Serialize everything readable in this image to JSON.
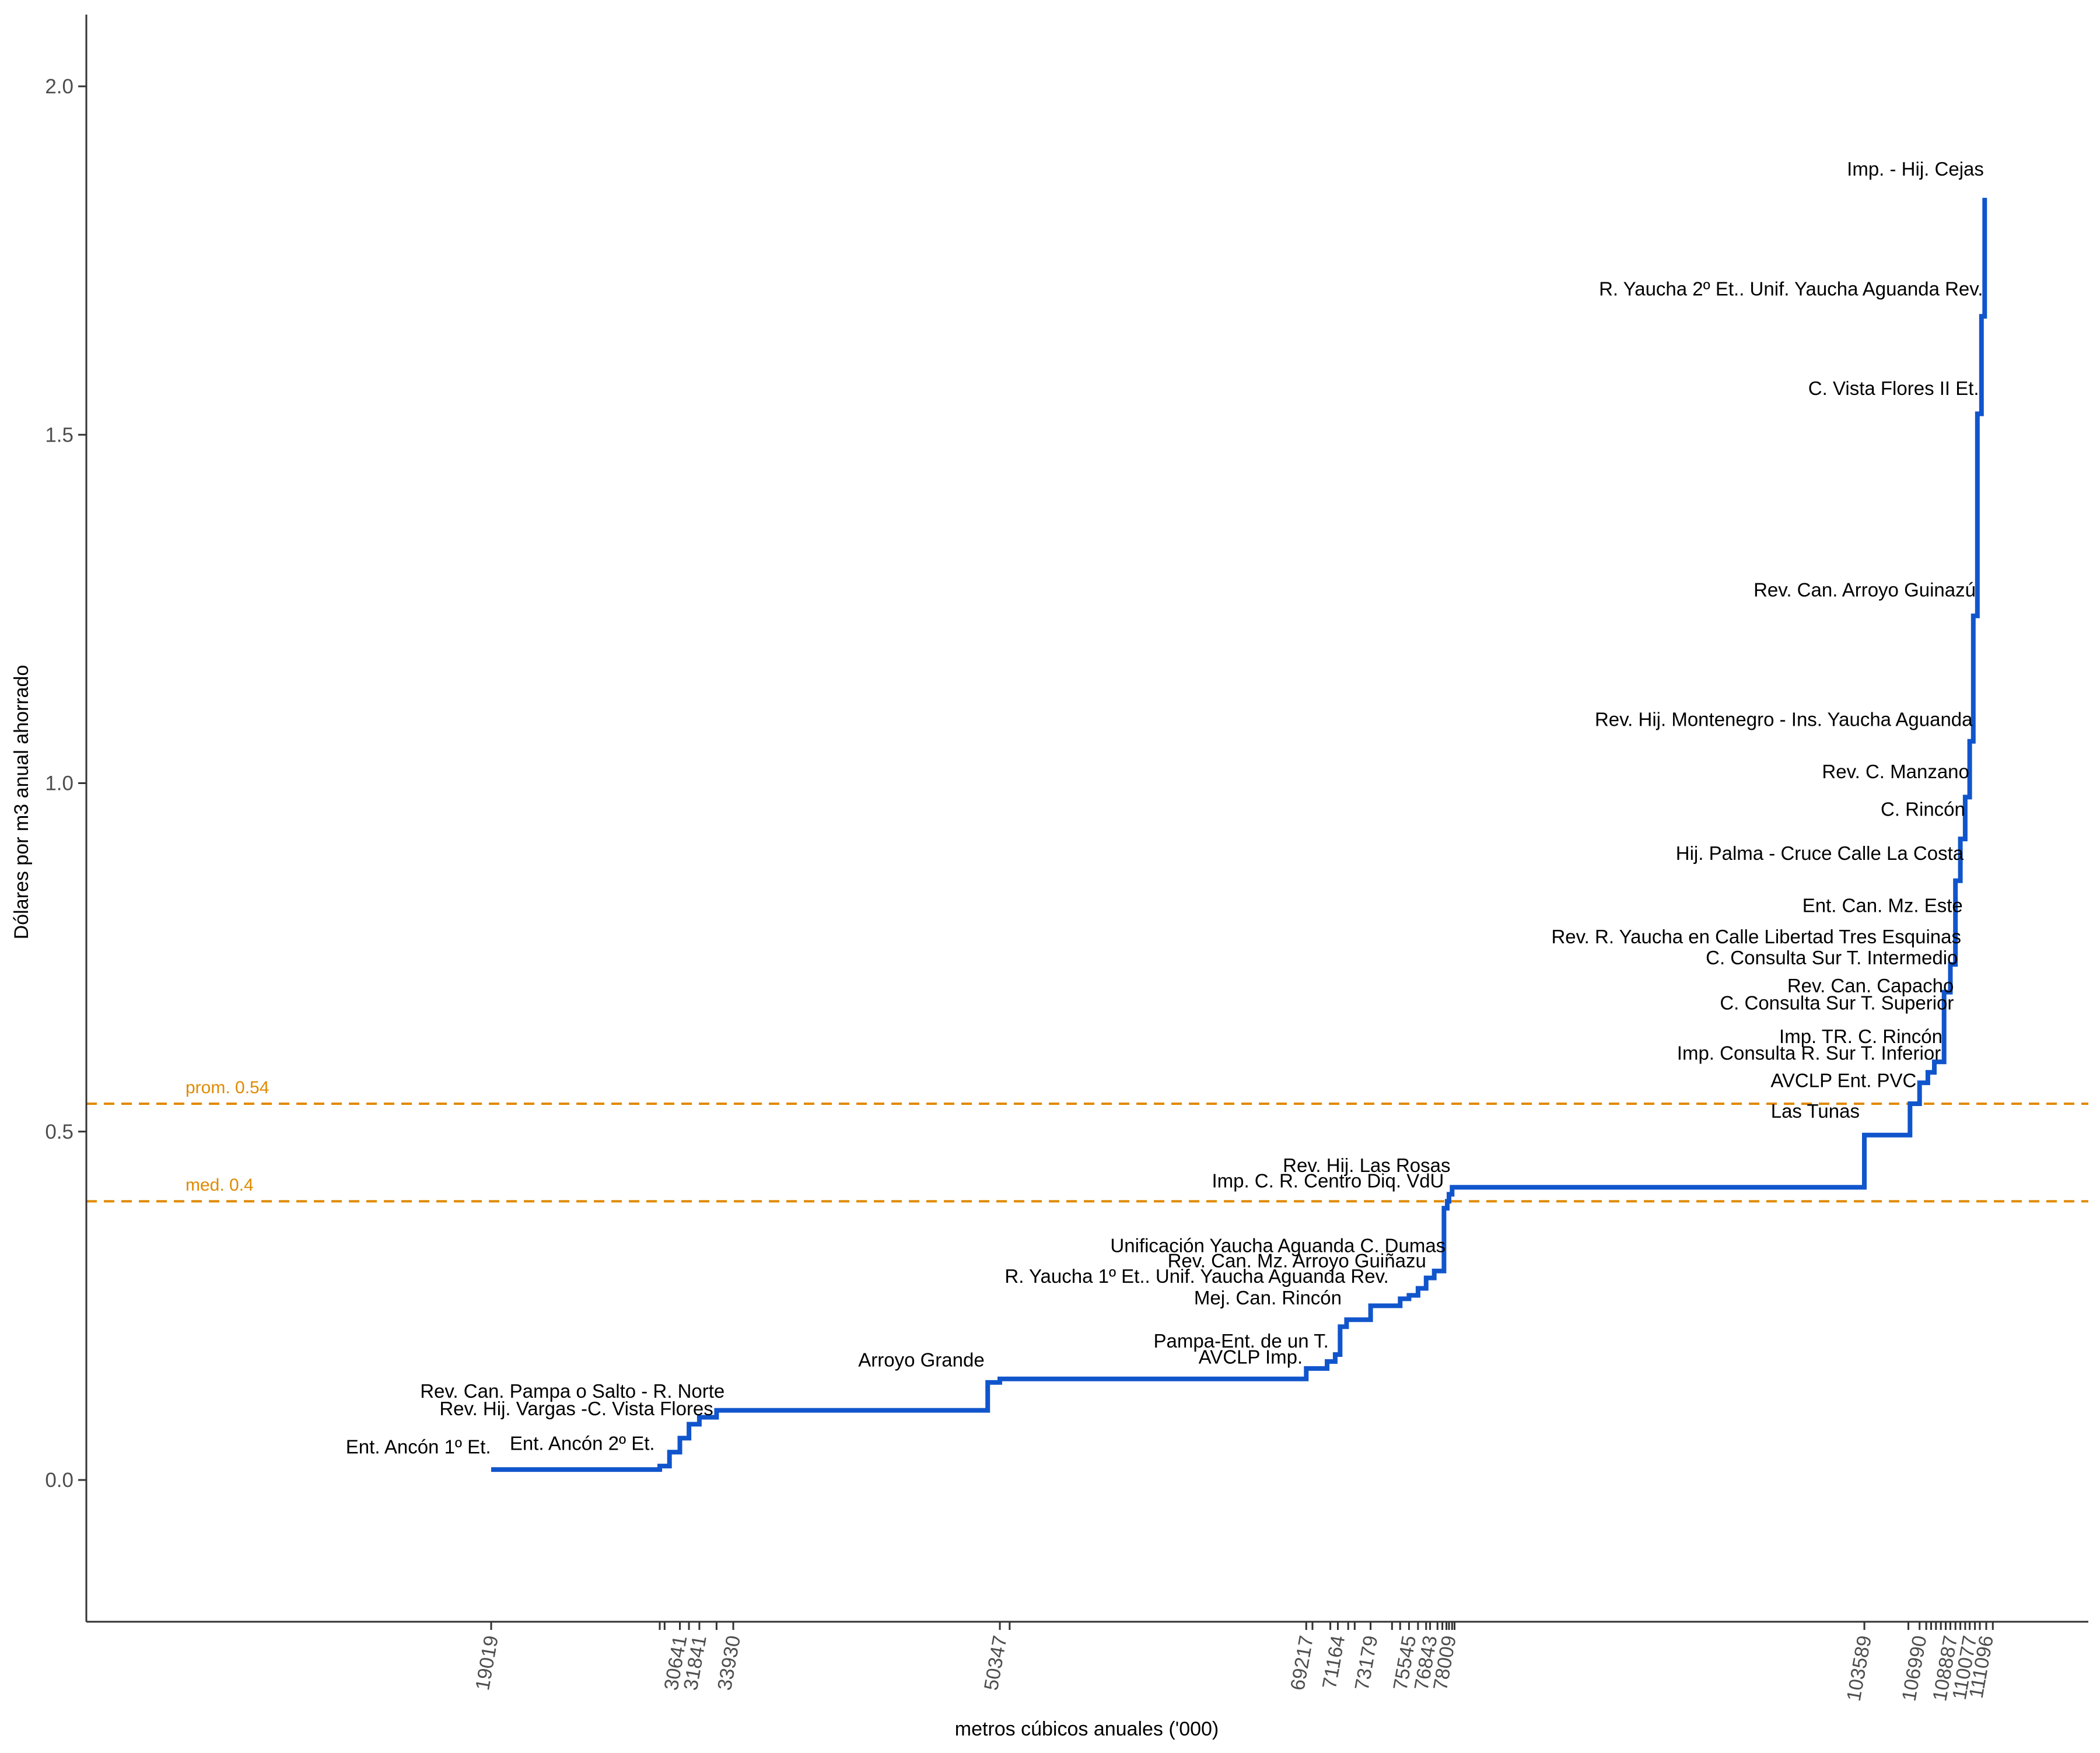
{
  "chart_data": {
    "type": "line",
    "title": "",
    "xlabel": "metros cúbicos anuales ('000)",
    "ylabel": "Dólares por m3 anual ahorrado",
    "xlim": [
      0,
      113200
    ],
    "ylim": [
      -0.2,
      2.1
    ],
    "y_ticks": [
      0.0,
      0.5,
      1.0,
      1.5,
      2.0
    ],
    "y_tick_labels": [
      "0.0",
      "0.5",
      "1.0",
      "1.5",
      "2.0"
    ],
    "x_tick_marks": [
      19019,
      29400,
      29700,
      30641,
      31200,
      31841,
      32900,
      33930,
      50347,
      50950,
      69217,
      69600,
      70700,
      71164,
      71800,
      72200,
      73179,
      74500,
      75000,
      75545,
      76100,
      76600,
      76843,
      77300,
      77600,
      77850,
      78009,
      78200,
      78350,
      103589,
      106300,
      106990,
      107400,
      107700,
      108000,
      108300,
      108600,
      108887,
      109200,
      109500,
      109800,
      110077,
      110400,
      110700,
      111096,
      111500
    ],
    "x_tick_labels": [
      {
        "value": 19019,
        "label": "19019"
      },
      {
        "value": 30641,
        "label": "30641"
      },
      {
        "value": 31841,
        "label": "31841"
      },
      {
        "value": 33930,
        "label": "33930"
      },
      {
        "value": 50347,
        "label": "50347"
      },
      {
        "value": 69217,
        "label": "69217"
      },
      {
        "value": 71164,
        "label": "71164"
      },
      {
        "value": 73179,
        "label": "73179"
      },
      {
        "value": 75545,
        "label": "75545"
      },
      {
        "value": 76843,
        "label": "76843"
      },
      {
        "value": 78009,
        "label": "78009"
      },
      {
        "value": 103589,
        "label": "103589"
      },
      {
        "value": 106990,
        "label": "106990"
      },
      {
        "value": 108887,
        "label": "108887"
      },
      {
        "value": 110077,
        "label": "110077"
      },
      {
        "value": 111096,
        "label": "111096"
      }
    ],
    "series": [
      {
        "color": "#1155cc",
        "step_points": [
          [
            19019,
            0.015
          ],
          [
            29400,
            0.015
          ],
          [
            29400,
            0.02
          ],
          [
            30000,
            0.02
          ],
          [
            30000,
            0.04
          ],
          [
            30641,
            0.04
          ],
          [
            30641,
            0.06
          ],
          [
            31200,
            0.06
          ],
          [
            31200,
            0.08
          ],
          [
            31841,
            0.08
          ],
          [
            31841,
            0.09
          ],
          [
            32900,
            0.09
          ],
          [
            32900,
            0.1
          ],
          [
            49600,
            0.1
          ],
          [
            49600,
            0.14
          ],
          [
            50347,
            0.14
          ],
          [
            50347,
            0.145
          ],
          [
            69217,
            0.145
          ],
          [
            69217,
            0.16
          ],
          [
            70500,
            0.16
          ],
          [
            70500,
            0.17
          ],
          [
            71000,
            0.17
          ],
          [
            71000,
            0.18
          ],
          [
            71300,
            0.18
          ],
          [
            71300,
            0.22
          ],
          [
            71700,
            0.22
          ],
          [
            71700,
            0.23
          ],
          [
            73179,
            0.23
          ],
          [
            73179,
            0.25
          ],
          [
            75000,
            0.25
          ],
          [
            75000,
            0.26
          ],
          [
            75545,
            0.26
          ],
          [
            75545,
            0.265
          ],
          [
            76100,
            0.265
          ],
          [
            76100,
            0.275
          ],
          [
            76600,
            0.275
          ],
          [
            76600,
            0.29
          ],
          [
            77100,
            0.29
          ],
          [
            77100,
            0.3
          ],
          [
            77700,
            0.3
          ],
          [
            77700,
            0.39
          ],
          [
            77900,
            0.39
          ],
          [
            77900,
            0.4
          ],
          [
            78009,
            0.4
          ],
          [
            78009,
            0.41
          ],
          [
            78200,
            0.41
          ],
          [
            78200,
            0.42
          ],
          [
            103589,
            0.42
          ],
          [
            103589,
            0.495
          ],
          [
            106400,
            0.495
          ],
          [
            106400,
            0.54
          ],
          [
            106990,
            0.54
          ],
          [
            106990,
            0.57
          ],
          [
            107500,
            0.57
          ],
          [
            107500,
            0.585
          ],
          [
            107900,
            0.585
          ],
          [
            107900,
            0.6
          ],
          [
            108500,
            0.6
          ],
          [
            108500,
            0.7
          ],
          [
            108887,
            0.7
          ],
          [
            108887,
            0.74
          ],
          [
            109200,
            0.74
          ],
          [
            109200,
            0.86
          ],
          [
            109500,
            0.86
          ],
          [
            109500,
            0.92
          ],
          [
            109800,
            0.92
          ],
          [
            109800,
            0.98
          ],
          [
            110077,
            0.98
          ],
          [
            110077,
            1.06
          ],
          [
            110300,
            1.06
          ],
          [
            110300,
            1.24
          ],
          [
            110550,
            1.24
          ],
          [
            110550,
            1.53
          ],
          [
            110800,
            1.53
          ],
          [
            110800,
            1.67
          ],
          [
            111000,
            1.67
          ],
          [
            111000,
            1.84
          ]
        ]
      }
    ],
    "reference_lines": [
      {
        "label": "prom. 0.54",
        "value": 0.54,
        "color": "#e08a00",
        "style": "dashed"
      },
      {
        "label": "med. 0.4",
        "value": 0.4,
        "color": "#e08a00",
        "style": "dashed"
      }
    ],
    "annotations": [
      {
        "text": "Imp. - Hij. Cejas",
        "x": 110950,
        "y": 1.872,
        "anchor": "end"
      },
      {
        "text": "R. Yaucha 2º Et.. Unif. Yaucha Aguanda Rev.",
        "x": 110900,
        "y": 1.7,
        "anchor": "end"
      },
      {
        "text": "C. Vista Flores II Et.",
        "x": 110650,
        "y": 1.557,
        "anchor": "end"
      },
      {
        "text": "Rev. Can. Arroyo Guinazú",
        "x": 110450,
        "y": 1.268,
        "anchor": "end"
      },
      {
        "text": "Rev. Hij. Montenegro - Ins. Yaucha Aguanda",
        "x": 110250,
        "y": 1.082,
        "anchor": "end"
      },
      {
        "text": "Rev. C. Manzano",
        "x": 110050,
        "y": 1.007,
        "anchor": "end"
      },
      {
        "text": "C. Rincón",
        "x": 109800,
        "y": 0.953,
        "anchor": "end"
      },
      {
        "text": "Hij. Palma - Cruce Calle La Costa",
        "x": 109700,
        "y": 0.89,
        "anchor": "end"
      },
      {
        "text": "Ent. Can. Mz. Este",
        "x": 109650,
        "y": 0.815,
        "anchor": "end"
      },
      {
        "text": "Rev. R. Yaucha en Calle Libertad Tres Esquinas",
        "x": 109550,
        "y": 0.77,
        "anchor": "end"
      },
      {
        "text": "C. Consulta Sur T. Intermedio",
        "x": 109350,
        "y": 0.74,
        "anchor": "end"
      },
      {
        "text": "Rev. Can. Capacho",
        "x": 109100,
        "y": 0.7,
        "anchor": "end"
      },
      {
        "text": "C. Consulta Sur T. Superior",
        "x": 109100,
        "y": 0.675,
        "anchor": "end"
      },
      {
        "text": "Imp. TR. C. Rincón",
        "x": 108400,
        "y": 0.627,
        "anchor": "end"
      },
      {
        "text": "Imp. Consulta R. Sur T. Inferior",
        "x": 108300,
        "y": 0.603,
        "anchor": "end"
      },
      {
        "text": "AVCLP Ent. PVC",
        "x": 106800,
        "y": 0.564,
        "anchor": "end"
      },
      {
        "text": "Las Tunas",
        "x": 103300,
        "y": 0.52,
        "anchor": "end"
      },
      {
        "text": "Rev. Hij. Las Rosas",
        "x": 78100,
        "y": 0.442,
        "anchor": "end"
      },
      {
        "text": "Imp. C. R. Centro Diq. VdU",
        "x": 77700,
        "y": 0.42,
        "anchor": "end"
      },
      {
        "text": "Unificación Yaucha Aguanda C. Dumas",
        "x": 77800,
        "y": 0.327,
        "anchor": "end"
      },
      {
        "text": "Rev. Can. Mz. Arroyo Guiñazu",
        "x": 76600,
        "y": 0.305,
        "anchor": "end"
      },
      {
        "text": "R. Yaucha 1º Et.. Unif. Yaucha Aguanda Rev.",
        "x": 74300,
        "y": 0.283,
        "anchor": "end"
      },
      {
        "text": "Mej. Can. Rincón",
        "x": 71400,
        "y": 0.252,
        "anchor": "end"
      },
      {
        "text": "Pampa-Ent. de un T.",
        "x": 70600,
        "y": 0.19,
        "anchor": "end"
      },
      {
        "text": "AVCLP Imp.",
        "x": 69000,
        "y": 0.167,
        "anchor": "end"
      },
      {
        "text": "Arroyo Grande",
        "x": 49400,
        "y": 0.163,
        "anchor": "end"
      },
      {
        "text": "Rev. Can. Pampa o Salto - R. Norte",
        "x": 33400,
        "y": 0.118,
        "anchor": "end"
      },
      {
        "text": "Rev. Hij. Vargas -C. Vista Flores",
        "x": 32700,
        "y": 0.093,
        "anchor": "end"
      },
      {
        "text": "Ent. Ancón 2º Et.",
        "x": 29100,
        "y": 0.043,
        "anchor": "end"
      },
      {
        "text": "Ent. Ancón 1º Et.",
        "x": 19000,
        "y": 0.038,
        "anchor": "end"
      }
    ],
    "grid": false,
    "legend": "none"
  }
}
